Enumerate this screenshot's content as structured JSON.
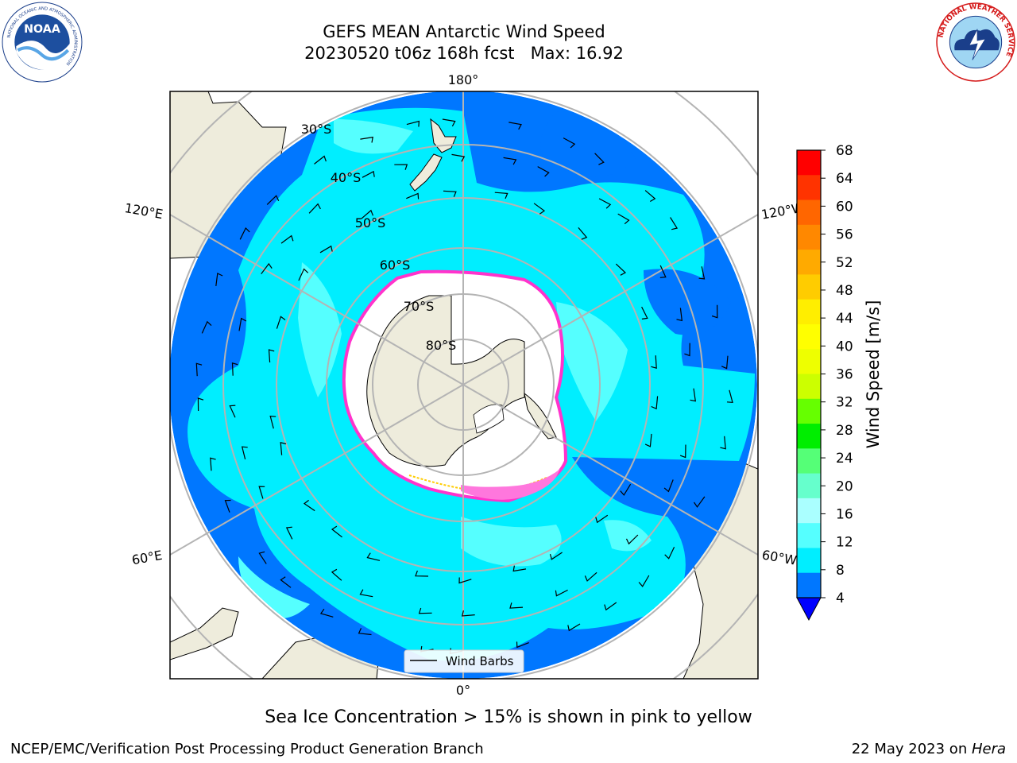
{
  "header": {
    "title": "GEFS MEAN Antarctic Wind Speed",
    "subtitle": "20230520 t06z 168h fcst   Max: 16.92"
  },
  "logos": {
    "left": {
      "name": "NOAA",
      "ring_text": "NATIONAL OCEANIC AND ATMOSPHERIC ADMINISTRATION",
      "bottom_text": "U.S. DEPARTMENT OF COMMERCE"
    },
    "right": {
      "ring_text": "NATIONAL WEATHER SERVICE"
    }
  },
  "map": {
    "projection": "south-polar-stereographic",
    "longitude_labels": {
      "top": "180°",
      "bottom": "0°",
      "upper_left": "120°E",
      "upper_right": "120°W",
      "lower_left": "60°E",
      "lower_right": "60°W"
    },
    "latitude_labels": [
      "30°S",
      "40°S",
      "50°S",
      "60°S",
      "70°S",
      "80°S"
    ],
    "legend": {
      "label": "Wind Barbs"
    },
    "colors": {
      "land": "#eeecdc",
      "sea_ice": "#ffffff",
      "ice_edge": "#ff33cc",
      "grid": "#b4b4b4"
    }
  },
  "colorbar": {
    "label": "Wind Speed [m/s]",
    "ticks": [
      "68",
      "64",
      "60",
      "56",
      "52",
      "48",
      "44",
      "40",
      "36",
      "32",
      "28",
      "24",
      "20",
      "16",
      "12",
      "8",
      "4"
    ],
    "colors_high_to_low": [
      "#ff0000",
      "#ff3300",
      "#ff6600",
      "#ff8800",
      "#ffaa00",
      "#ffcc00",
      "#ffee00",
      "#ffff00",
      "#eeff00",
      "#ccff00",
      "#66ff00",
      "#00ee00",
      "#55ff77",
      "#66ffcc",
      "#aaffff",
      "#55ffff",
      "#00eeff",
      "#0077ff"
    ],
    "extend_color": "#0000ff"
  },
  "footer": {
    "note": "Sea Ice Concentration > 15% is shown in pink to yellow",
    "left": "NCEP/EMC/Verification Post Processing Product Generation Branch",
    "right_date": "22 May 2023 on ",
    "right_host": "Hera"
  }
}
